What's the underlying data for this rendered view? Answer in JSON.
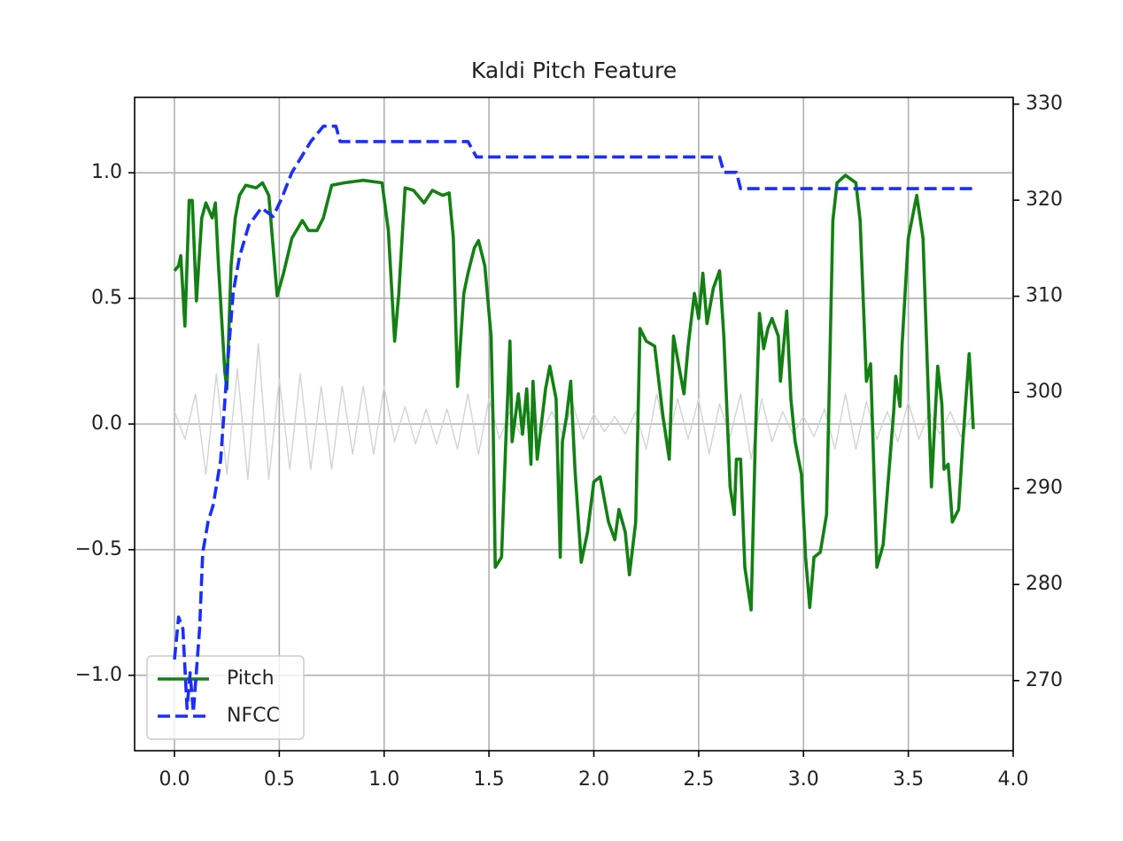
{
  "chart_data": {
    "type": "line",
    "title": "Kaldi Pitch Feature",
    "xlim": [
      -0.19,
      4.0
    ],
    "xticks": [
      {
        "value": 0,
        "label": "0.0"
      },
      0.5,
      {
        "value": 1,
        "label": "1.0"
      },
      1.5,
      {
        "value": 2,
        "label": "2.0"
      },
      2.5,
      {
        "value": 3,
        "label": "3.0"
      },
      3.5,
      {
        "value": 4,
        "label": "4.0"
      }
    ],
    "ylim": [
      -1.3,
      1.3
    ],
    "yticks": [
      {
        "value": -1,
        "label": "−1.0"
      },
      {
        "value": -0.5,
        "label": "−0.5"
      },
      {
        "value": 0,
        "label": "0.0"
      },
      0.5,
      {
        "value": 1,
        "label": "1.0"
      }
    ],
    "y2lim": [
      262.7,
      330.7
    ],
    "y2ticks": [
      270,
      280,
      290,
      300,
      310,
      320,
      330
    ],
    "grid": true,
    "legend": "lower left",
    "series": [
      {
        "color": "#d3d3d3",
        "x": [
          0,
          0.05,
          0.1,
          0.15,
          0.2,
          0.25,
          0.3,
          0.35,
          0.4,
          0.45,
          0.5,
          0.55,
          0.6,
          0.65,
          0.7,
          0.75,
          0.8,
          0.85,
          0.9,
          0.95,
          1.0,
          1.05,
          1.1,
          1.15,
          1.2,
          1.25,
          1.3,
          1.35,
          1.4,
          1.45,
          1.5,
          1.55,
          1.6,
          1.65,
          1.7,
          1.75,
          1.8,
          1.85,
          1.9,
          1.95,
          2.0,
          2.05,
          2.1,
          2.15,
          2.2,
          2.25,
          2.3,
          2.35,
          2.4,
          2.45,
          2.5,
          2.55,
          2.6,
          2.65,
          2.7,
          2.75,
          2.8,
          2.85,
          2.9,
          2.95,
          3.0,
          3.05,
          3.1,
          3.15,
          3.2,
          3.25,
          3.3,
          3.35,
          3.4,
          3.45,
          3.5,
          3.55,
          3.6,
          3.65,
          3.7,
          3.75,
          3.8
        ],
        "values": [
          0.05,
          -0.06,
          0.12,
          -0.2,
          0.2,
          -0.2,
          0.22,
          -0.22,
          0.32,
          -0.22,
          0.18,
          -0.18,
          0.2,
          -0.18,
          0.15,
          -0.18,
          0.15,
          -0.12,
          0.15,
          -0.12,
          0.15,
          -0.07,
          0.07,
          -0.08,
          0.06,
          -0.08,
          0.06,
          -0.1,
          0.12,
          -0.12,
          0.1,
          -0.06,
          0.05,
          -0.04,
          0.05,
          -0.04,
          0.05,
          -0.04,
          0.08,
          -0.06,
          0.04,
          -0.03,
          0.03,
          -0.04,
          0.05,
          -0.1,
          0.12,
          -0.08,
          0.1,
          -0.06,
          0.1,
          -0.12,
          0.08,
          -0.05,
          0.12,
          -0.14,
          0.1,
          -0.07,
          0.05,
          -0.04,
          0.03,
          -0.05,
          0.06,
          -0.1,
          0.12,
          -0.1,
          0.09,
          -0.06,
          0.05,
          -0.07,
          0.09,
          -0.06,
          0.05,
          -0.04,
          0.05,
          -0.05,
          0.03
        ]
      },
      {
        "name": "Pitch",
        "color": "#138013",
        "style": "solid",
        "x": [
          0,
          0.02,
          0.03,
          0.05,
          0.07,
          0.085,
          0.105,
          0.13,
          0.15,
          0.18,
          0.195,
          0.21,
          0.24,
          0.25,
          0.27,
          0.29,
          0.31,
          0.34,
          0.39,
          0.42,
          0.45,
          0.49,
          0.52,
          0.56,
          0.61,
          0.64,
          0.68,
          0.71,
          0.75,
          0.81,
          0.9,
          0.99,
          1.02,
          1.05,
          1.07,
          1.1,
          1.14,
          1.19,
          1.23,
          1.28,
          1.31,
          1.33,
          1.35,
          1.38,
          1.4,
          1.43,
          1.45,
          1.48,
          1.51,
          1.52,
          1.53,
          1.56,
          1.58,
          1.6,
          1.61,
          1.64,
          1.66,
          1.68,
          1.7,
          1.71,
          1.73,
          1.75,
          1.77,
          1.79,
          1.82,
          1.84,
          1.85,
          1.87,
          1.89,
          1.91,
          1.94,
          1.97,
          2.0,
          2.03,
          2.07,
          2.1,
          2.12,
          2.15,
          2.17,
          2.2,
          2.22,
          2.25,
          2.29,
          2.33,
          2.36,
          2.38,
          2.41,
          2.43,
          2.45,
          2.48,
          2.5,
          2.52,
          2.54,
          2.57,
          2.6,
          2.62,
          2.65,
          2.67,
          2.68,
          2.7,
          2.72,
          2.75,
          2.77,
          2.79,
          2.81,
          2.83,
          2.85,
          2.88,
          2.89,
          2.92,
          2.94,
          2.96,
          2.99,
          3.01,
          3.03,
          3.05,
          3.08,
          3.11,
          3.14,
          3.16,
          3.2,
          3.25,
          3.27,
          3.3,
          3.32,
          3.35,
          3.38,
          3.43,
          3.44,
          3.46,
          3.47,
          3.5,
          3.54,
          3.57,
          3.61,
          3.64,
          3.66,
          3.67,
          3.69,
          3.71,
          3.74,
          3.76,
          3.79,
          3.8,
          3.81
        ],
        "values": [
          0.61,
          0.63,
          0.67,
          0.39,
          0.89,
          0.89,
          0.49,
          0.82,
          0.88,
          0.82,
          0.88,
          0.63,
          0.21,
          0.14,
          0.63,
          0.82,
          0.91,
          0.95,
          0.94,
          0.96,
          0.91,
          0.51,
          0.6,
          0.74,
          0.81,
          0.77,
          0.77,
          0.82,
          0.95,
          0.96,
          0.97,
          0.96,
          0.77,
          0.33,
          0.52,
          0.94,
          0.93,
          0.88,
          0.93,
          0.91,
          0.92,
          0.74,
          0.15,
          0.52,
          0.6,
          0.7,
          0.73,
          0.63,
          0.35,
          0.0,
          -0.57,
          -0.53,
          -0.07,
          0.33,
          -0.07,
          0.12,
          -0.04,
          0.14,
          -0.16,
          0.17,
          -0.14,
          0.0,
          0.14,
          0.23,
          0.1,
          -0.53,
          -0.07,
          0.03,
          0.17,
          -0.18,
          -0.55,
          -0.43,
          -0.23,
          -0.21,
          -0.39,
          -0.46,
          -0.34,
          -0.43,
          -0.6,
          -0.39,
          0.38,
          0.33,
          0.31,
          0.03,
          -0.14,
          0.35,
          0.21,
          0.12,
          0.31,
          0.52,
          0.42,
          0.6,
          0.4,
          0.54,
          0.61,
          0.35,
          -0.25,
          -0.36,
          -0.14,
          -0.14,
          -0.57,
          -0.74,
          -0.07,
          0.44,
          0.3,
          0.38,
          0.42,
          0.35,
          0.17,
          0.45,
          0.1,
          -0.07,
          -0.2,
          -0.53,
          -0.73,
          -0.53,
          -0.51,
          -0.36,
          0.81,
          0.96,
          0.99,
          0.96,
          0.81,
          0.17,
          0.24,
          -0.57,
          -0.48,
          0.05,
          0.19,
          0.07,
          0.31,
          0.74,
          0.91,
          0.74,
          -0.25,
          0.23,
          0.08,
          -0.18,
          -0.16,
          -0.39,
          -0.34,
          -0.07,
          0.28,
          0.14,
          -0.02
        ]
      },
      {
        "name": "NFCC",
        "color": "#1a2eff",
        "style": "dashed",
        "axis": "y2",
        "x": [
          0,
          0.02,
          0.04,
          0.06,
          0.075,
          0.09,
          0.12,
          0.135,
          0.16,
          0.185,
          0.22,
          0.25,
          0.28,
          0.31,
          0.355,
          0.415,
          0.47,
          0.51,
          0.56,
          0.6,
          0.65,
          0.71,
          0.77,
          0.79,
          1.4,
          1.44,
          2.6,
          2.62,
          2.68,
          2.7,
          3.81
        ],
        "values": [
          272.2,
          276.6,
          275.4,
          267.1,
          270.8,
          266.7,
          275.4,
          283.3,
          286.5,
          288.3,
          292.9,
          302.1,
          310.4,
          314.1,
          317.4,
          319.2,
          318.3,
          320.1,
          322.9,
          324.3,
          326.1,
          327.7,
          327.7,
          326.1,
          326.1,
          324.5,
          324.5,
          322.9,
          322.9,
          321.2,
          321.2
        ]
      }
    ]
  }
}
